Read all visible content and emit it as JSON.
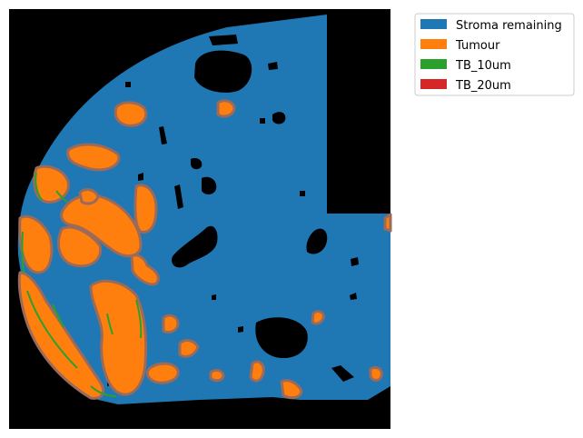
{
  "legend": {
    "items": [
      {
        "label": "Stroma remaining",
        "color": "#1f77b4"
      },
      {
        "label": "Tumour",
        "color": "#ff7f0e"
      },
      {
        "label": "TB_10um",
        "color": "#2ca02c"
      },
      {
        "label": "TB_20um",
        "color": "#d62728"
      }
    ]
  },
  "colors": {
    "background": "#000000",
    "stroma": "#1f77b4",
    "tumour": "#ff7f0e",
    "tb10": "#2ca02c",
    "tb20": "#d62728",
    "boundary": "#9a6a5a"
  }
}
